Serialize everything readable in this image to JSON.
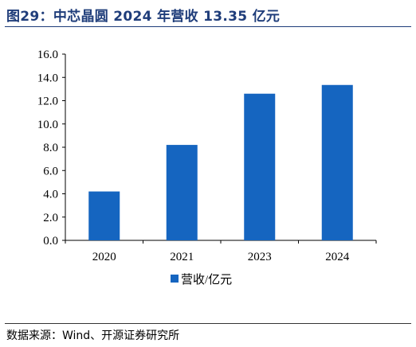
{
  "title": "图29：中芯晶圆 2024 年营收 13.35 亿元",
  "source": "数据来源：Wind、开源证券研究所",
  "chart_data": {
    "type": "bar",
    "categories": [
      "2020",
      "2021",
      "2023",
      "2024"
    ],
    "series": [
      {
        "name": "营收/亿元",
        "values": [
          4.2,
          8.2,
          12.6,
          13.35
        ],
        "color": "#1565c0"
      }
    ],
    "ylim": [
      0,
      16
    ],
    "yticks": [
      "0.0",
      "2.0",
      "4.0",
      "6.0",
      "8.0",
      "10.0",
      "12.0",
      "14.0",
      "16.0"
    ],
    "grid": false,
    "legend_position": "bottom"
  }
}
